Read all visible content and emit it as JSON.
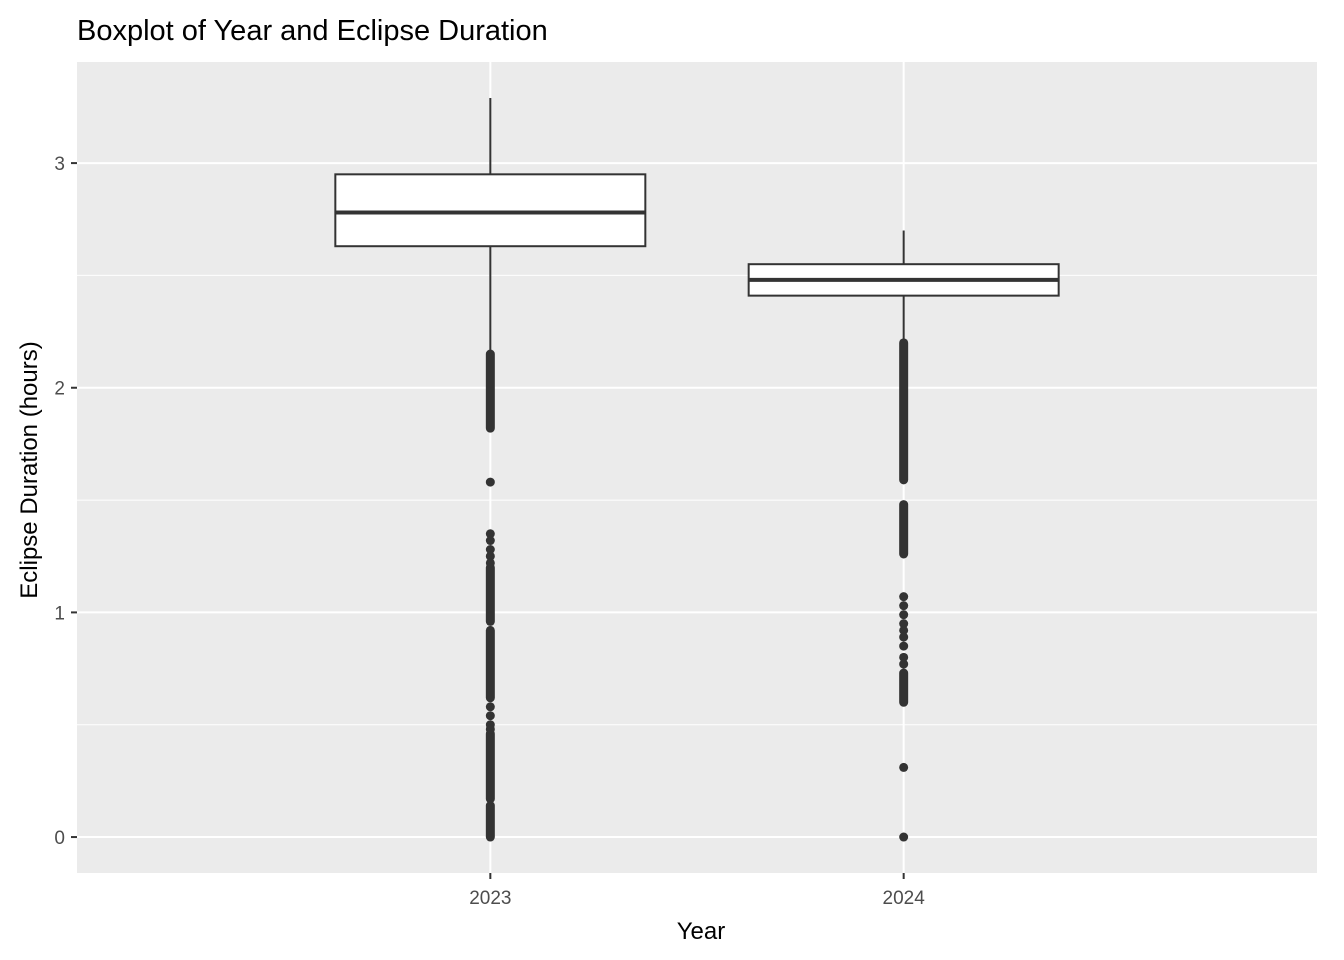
{
  "chart_data": {
    "type": "boxplot",
    "title": "Boxplot of Year and Eclipse Duration",
    "xlabel": "Year",
    "ylabel": "Eclipse Duration (hours)",
    "categories": [
      "2023",
      "2024"
    ],
    "ylim": [
      -0.16,
      3.45
    ],
    "y_ticks": [
      0,
      1,
      2,
      3
    ],
    "y_tick_labels": [
      "0",
      "1",
      "2",
      "3"
    ],
    "y_minor_ticks": [
      0.5,
      1.5,
      2.5
    ],
    "grid": true,
    "boxes": [
      {
        "category": "2023",
        "whisker_low": 2.15,
        "q1": 2.63,
        "median": 2.78,
        "q3": 2.95,
        "whisker_high": 3.29,
        "outlier_bands": [
          [
            1.82,
            2.15
          ],
          [
            0.0,
            0.14
          ],
          [
            0.17,
            0.46
          ],
          [
            0.62,
            0.92
          ],
          [
            0.96,
            1.2
          ]
        ],
        "outliers": [
          1.58,
          1.35,
          1.32,
          1.28,
          1.25,
          1.22,
          0.58,
          0.54,
          0.5,
          0.48
        ]
      },
      {
        "category": "2024",
        "whisker_low": 2.2,
        "q1": 2.41,
        "median": 2.48,
        "q3": 2.55,
        "whisker_high": 2.7,
        "outlier_bands": [
          [
            1.59,
            2.2
          ],
          [
            1.26,
            1.48
          ],
          [
            0.6,
            0.73
          ]
        ],
        "outliers": [
          1.07,
          1.03,
          0.99,
          0.95,
          0.92,
          0.89,
          0.85,
          0.8,
          0.77,
          0.31,
          0.0
        ]
      }
    ],
    "colors": {
      "panel_background": "#ebebeb",
      "grid": "#ffffff",
      "box_fill": "#ffffff",
      "box_line": "#333333",
      "outlier": "#333333"
    }
  }
}
